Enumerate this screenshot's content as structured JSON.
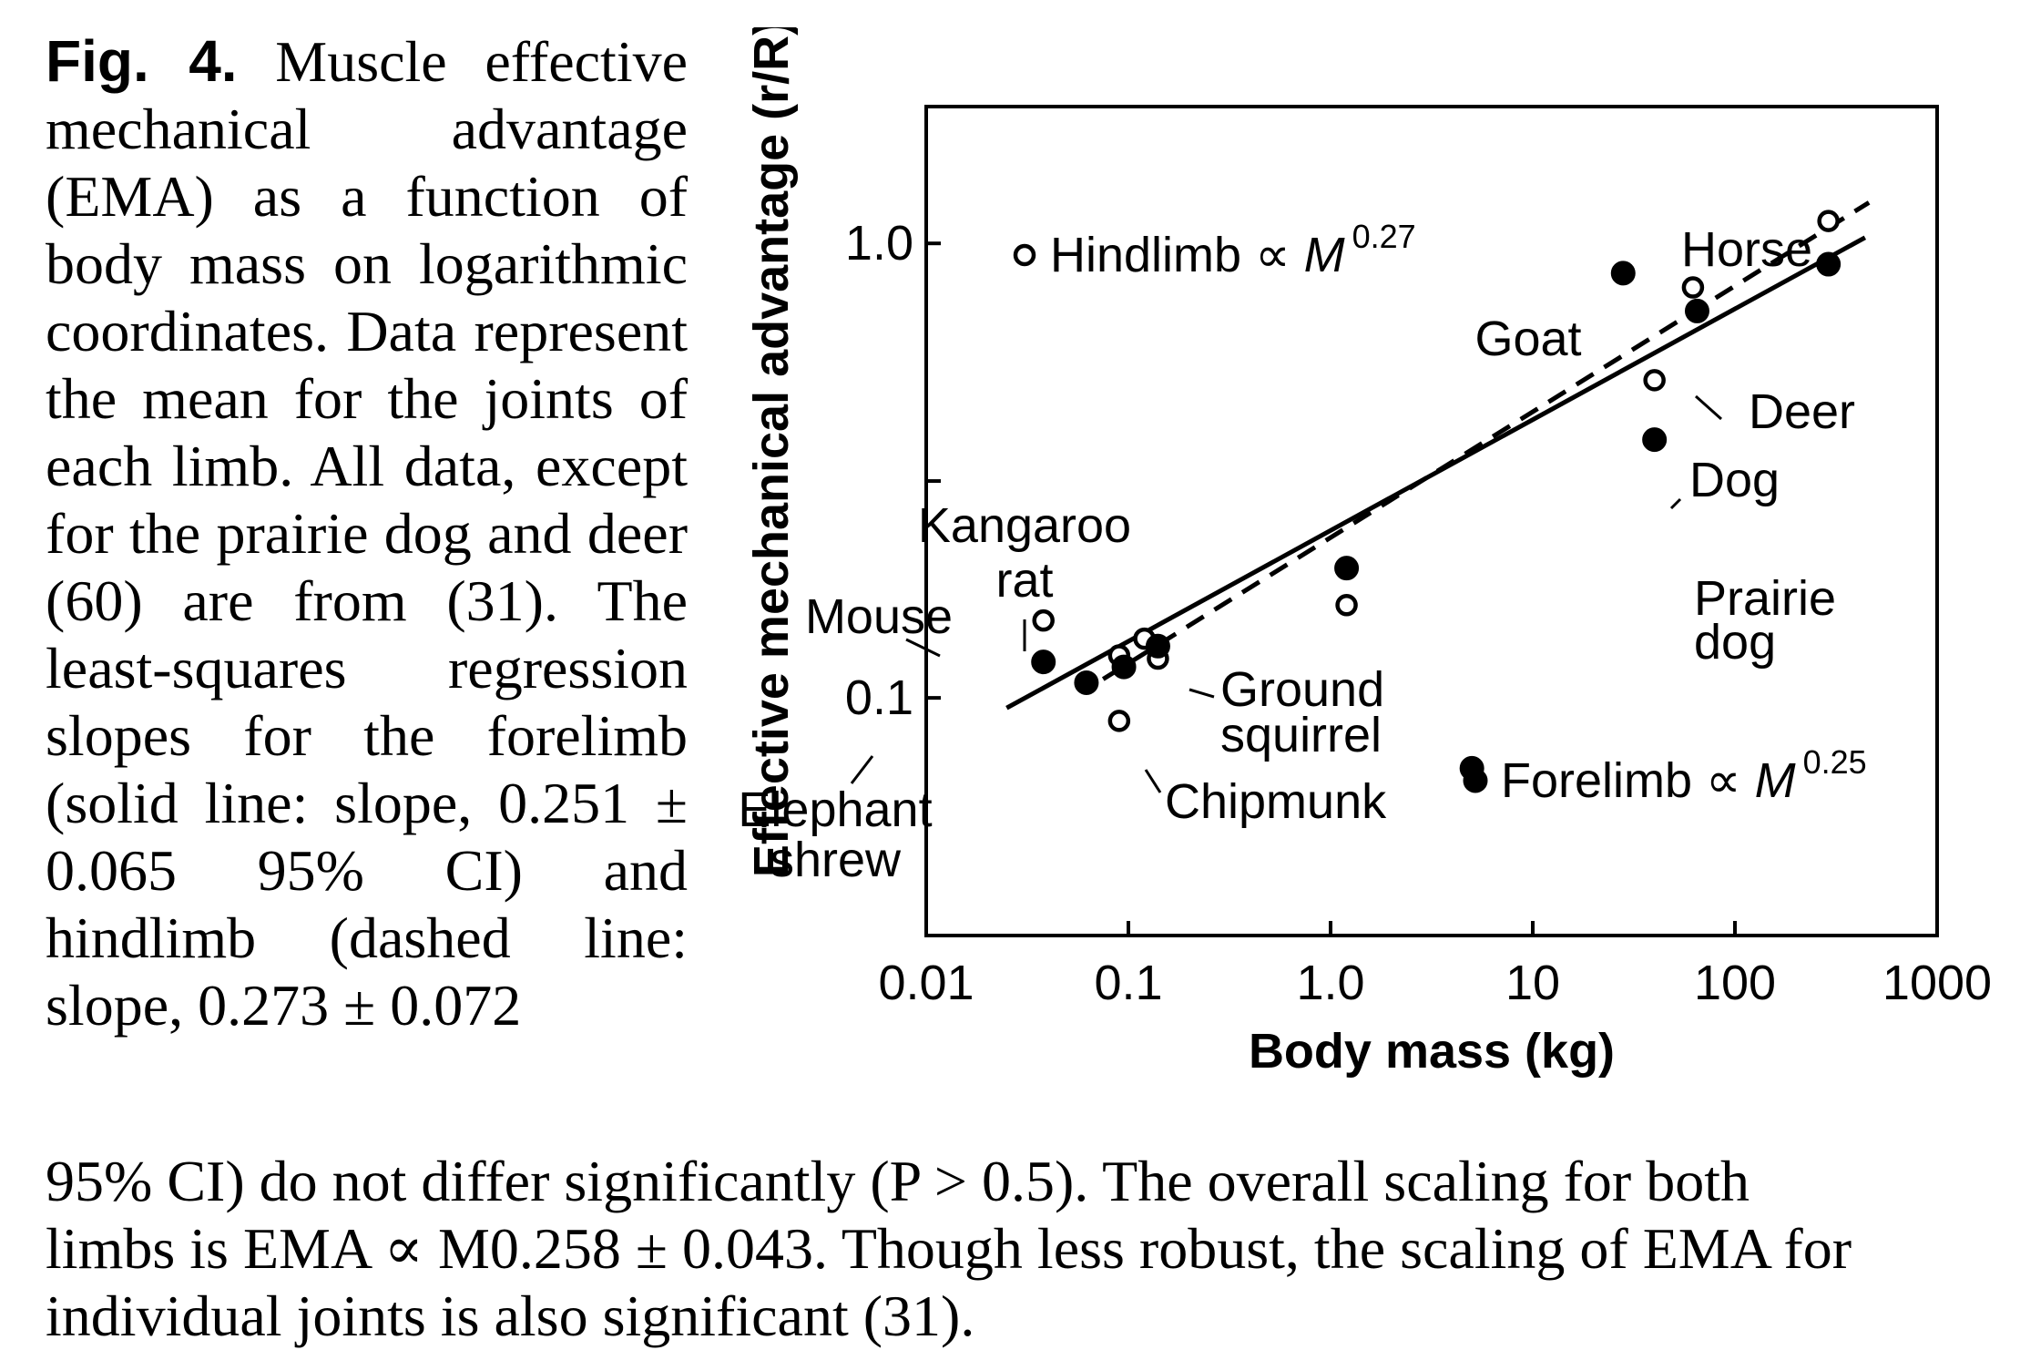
{
  "caption": {
    "fig_label": "Fig. 4.",
    "column_text": "Muscle effective mechanical advantage (EMA) as a function of body mass on logarithmic coordinates. Data represent the mean for the joints of each limb. All data, except for the prairie dog and deer (60) are from (31). The least-squares regression slopes for the forelimb (solid line: slope, 0.251 ± 0.065 95% CI) and hindlimb (dashed line: slope, 0.273 ± 0.072",
    "line1": "95% CI) do not differ significantly (P > 0.5). The overall scaling for both",
    "line2": "limbs is EMA ∝ M0.258 ± 0.043. Though less robust, the scaling of EMA for",
    "line3": "individual joints is also significant (31)."
  },
  "chart_data": {
    "type": "scatter",
    "xlabel": "Body mass (kg)",
    "ylabel": "Effective mechanical advantage (r/R)",
    "x_scale": "log",
    "y_scale": "log",
    "xlim": [
      0.01,
      1000
    ],
    "ylim": [
      0.03,
      2.0
    ],
    "x_tick_labels": [
      "0.01",
      "0.1",
      "1.0",
      "10",
      "100",
      "1000"
    ],
    "y_tick_labels": [
      "0.1",
      "1.0"
    ],
    "legend": [
      {
        "marker": "open",
        "label": "Hindlimb ∝ M",
        "exponent": "0.27"
      },
      {
        "marker": "filled",
        "label": "Forelimb ∝ M",
        "exponent": "0.25"
      }
    ],
    "series": [
      {
        "name": "Hindlimb",
        "marker": "open",
        "points": [
          {
            "x": 0.038,
            "y": 0.148
          },
          {
            "x": 0.09,
            "y": 0.124
          },
          {
            "x": 0.12,
            "y": 0.135
          },
          {
            "x": 0.14,
            "y": 0.122
          },
          {
            "x": 0.09,
            "y": 0.089
          },
          {
            "x": 1.2,
            "y": 0.16
          },
          {
            "x": 40,
            "y": 0.5
          },
          {
            "x": 62,
            "y": 0.8
          },
          {
            "x": 290,
            "y": 1.12
          }
        ]
      },
      {
        "name": "Forelimb",
        "marker": "filled",
        "points": [
          {
            "x": 0.038,
            "y": 0.12
          },
          {
            "x": 0.062,
            "y": 0.108
          },
          {
            "x": 0.095,
            "y": 0.117
          },
          {
            "x": 0.14,
            "y": 0.13
          },
          {
            "x": 1.2,
            "y": 0.193
          },
          {
            "x": 28,
            "y": 0.86
          },
          {
            "x": 40,
            "y": 0.37
          },
          {
            "x": 65,
            "y": 0.71
          },
          {
            "x": 290,
            "y": 0.9
          },
          {
            "x": 5,
            "y": 0.07
          }
        ]
      }
    ],
    "fits": [
      {
        "series": "Forelimb",
        "style": "solid",
        "slope": 0.251,
        "from": {
          "x": 0.025,
          "y": 0.095
        },
        "to": {
          "x": 440,
          "y": 1.03
        }
      },
      {
        "series": "Hindlimb",
        "style": "dashed",
        "slope": 0.273,
        "from": {
          "x": 0.075,
          "y": 0.11
        },
        "to": {
          "x": 460,
          "y": 1.23
        }
      }
    ],
    "annotations": [
      {
        "text": "Horse"
      },
      {
        "text": "Goat"
      },
      {
        "text": "Deer"
      },
      {
        "text": "Dog"
      },
      {
        "text": "Kangaroo"
      },
      {
        "text": "rat"
      },
      {
        "text": "Mouse"
      },
      {
        "text": "Prairie"
      },
      {
        "text": "dog"
      },
      {
        "text": "Ground"
      },
      {
        "text": "squirrel"
      },
      {
        "text": "Chipmunk"
      },
      {
        "text": "Elephant"
      },
      {
        "text": "shrew"
      }
    ]
  }
}
